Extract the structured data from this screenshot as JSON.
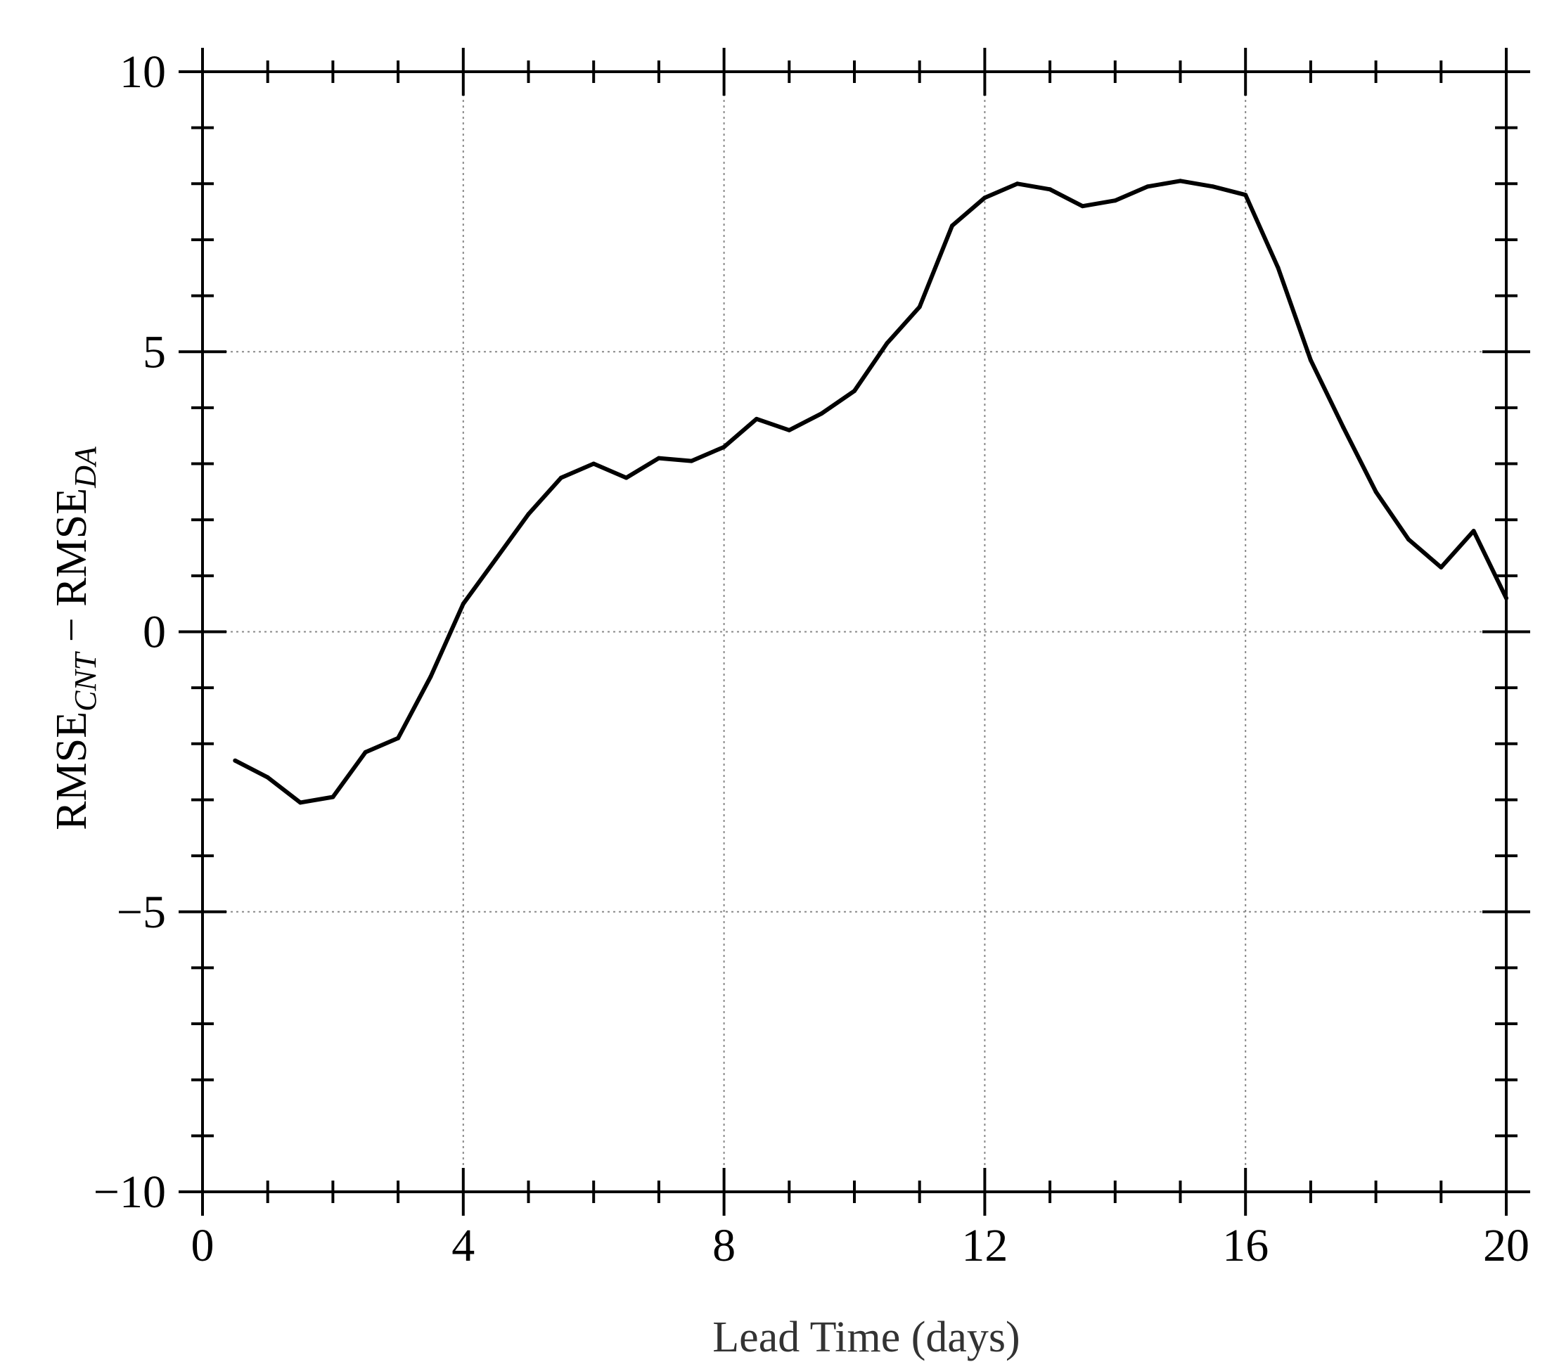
{
  "chart_data": {
    "type": "line",
    "title": "",
    "xlabel": "Lead Time (days)",
    "ylabel": {
      "part1": "RMSE",
      "sub1": "CNT",
      "operator": " − ",
      "part2": "RMSE",
      "sub2": "DA"
    },
    "xlim": [
      0,
      20
    ],
    "ylim": [
      -10,
      10
    ],
    "x_ticks": [
      0,
      4,
      8,
      12,
      16,
      20
    ],
    "x_tick_labels": [
      "0",
      "4",
      "8",
      "12",
      "16",
      "20"
    ],
    "x_minor_step": 1,
    "y_ticks": [
      -10,
      -5,
      0,
      5,
      10
    ],
    "y_tick_labels": [
      "−10",
      "−5",
      "0",
      "5",
      "10"
    ],
    "y_minor_step": 1,
    "grid": true,
    "grid_style": "dotted",
    "line_color": "#000000",
    "series": [
      {
        "x": [
          0.5,
          1.0,
          1.5,
          2.0,
          2.5,
          3.0,
          3.5,
          4.0,
          4.5,
          5.0,
          5.5,
          6.0,
          6.5,
          7.0,
          7.5,
          8.0,
          8.5,
          9.0,
          9.5,
          10.0,
          10.5,
          11.0,
          11.5,
          12.0,
          12.5,
          13.0,
          13.5,
          14.0,
          14.5,
          15.0,
          15.5,
          16.0,
          16.5,
          17.0,
          17.5,
          18.0,
          18.5,
          19.0,
          19.5,
          20.0
        ],
        "y": [
          -2.3,
          -2.6,
          -3.05,
          -2.95,
          -2.15,
          -1.9,
          -0.8,
          0.5,
          1.3,
          2.1,
          2.75,
          3.0,
          2.75,
          3.1,
          3.05,
          3.3,
          3.8,
          3.6,
          3.9,
          4.3,
          5.15,
          5.8,
          7.25,
          7.75,
          8.0,
          7.9,
          7.6,
          7.7,
          7.95,
          8.05,
          7.95,
          7.8,
          6.5,
          4.85,
          3.65,
          2.5,
          1.65,
          1.15,
          1.8,
          0.6
        ]
      }
    ]
  }
}
